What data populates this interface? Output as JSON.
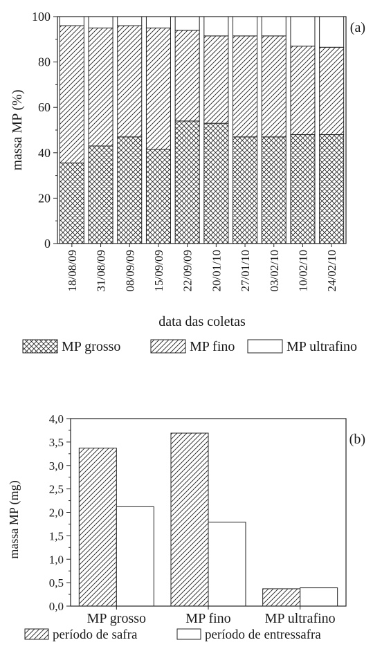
{
  "chart_data": [
    {
      "type": "bar",
      "stacked": true,
      "panel_label": "(a)",
      "xlabel": "data das coletas",
      "ylabel": "massa MP (%)",
      "ylim": [
        0,
        100
      ],
      "yticks": [
        "0",
        "20",
        "40",
        "60",
        "80",
        "100"
      ],
      "categories": [
        "18/08/09",
        "31/08/09",
        "08/09/09",
        "15/09/09",
        "22/09/09",
        "20/01/10",
        "27/01/10",
        "03/02/10",
        "10/02/10",
        "24/02/10"
      ],
      "series": [
        {
          "name": "MP grosso",
          "pattern": "crosshatch",
          "values": [
            35.5,
            43,
            47,
            41.5,
            54,
            53,
            47,
            47,
            48,
            48
          ]
        },
        {
          "name": "MP fino",
          "pattern": "diagonal",
          "values": [
            60.5,
            52,
            49,
            53.5,
            40,
            38.5,
            44.5,
            44.5,
            39,
            38.5
          ]
        },
        {
          "name": "MP ultrafino",
          "pattern": "blank",
          "values": [
            4,
            5,
            4,
            5,
            6,
            8.5,
            8.5,
            8.5,
            13,
            13.5
          ]
        }
      ],
      "legend_position": "bottom",
      "grid": false
    },
    {
      "type": "bar",
      "stacked": false,
      "panel_label": "(b)",
      "xlabel": "",
      "ylabel": "massa MP (mg)",
      "ylim": [
        0,
        4
      ],
      "yticks": [
        "0,0",
        "0,5",
        "1,0",
        "1,5",
        "2,0",
        "2,5",
        "3,0",
        "3,5",
        "4,0"
      ],
      "categories": [
        "MP grosso",
        "MP fino",
        "MP ultrafino"
      ],
      "series": [
        {
          "name": "período de safra",
          "pattern": "diagonal",
          "values": [
            3.37,
            3.69,
            0.37
          ]
        },
        {
          "name": "período de entressafra",
          "pattern": "blank",
          "values": [
            2.12,
            1.79,
            0.39
          ]
        }
      ],
      "legend_position": "bottom",
      "grid": false
    }
  ]
}
